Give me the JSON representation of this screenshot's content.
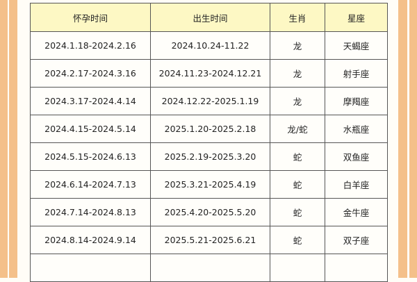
{
  "colors": {
    "border_stripe": "#f4c08a",
    "header_bg": "#fdf8c4"
  },
  "table": {
    "headers": [
      "怀孕时间",
      "出生时间",
      "生肖",
      "星座"
    ],
    "rows": [
      [
        "2024.1.18-2024.2.16",
        "2024.10.24-11.22",
        "龙",
        "天蝎座"
      ],
      [
        "2024.2.17-2024.3.16",
        "2024.11.23-2024.12.21",
        "龙",
        "射手座"
      ],
      [
        "2024.3.17-2024.4.14",
        "2024.12.22-2025.1.19",
        "龙",
        "摩羯座"
      ],
      [
        "2024.4.15-2024.5.14",
        "2025.1.20-2025.2.18",
        "龙/蛇",
        "水瓶座"
      ],
      [
        "2024.5.15-2024.6.13",
        "2025.2.19-2025.3.20",
        "蛇",
        "双鱼座"
      ],
      [
        "2024.6.14-2024.7.13",
        "2025.3.21-2025.4.19",
        "蛇",
        "白羊座"
      ],
      [
        "2024.7.14-2024.8.13",
        "2025.4.20-2025.5.20",
        "蛇",
        "金牛座"
      ],
      [
        "2024.8.14-2024.9.14",
        "2025.5.21-2025.6.21",
        "蛇",
        "双子座"
      ]
    ]
  }
}
